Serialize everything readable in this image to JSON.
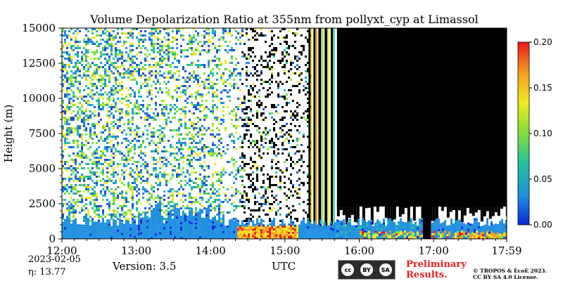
{
  "chart_data": {
    "type": "heatmap",
    "title": "Volume Depolarization Ratio at 355nm from pollyxt_cyp at Limassol",
    "xlabel": "UTC",
    "ylabel": "Height (m)",
    "x_ticks": [
      "12:00",
      "13:00",
      "14:00",
      "15:00",
      "16:00",
      "17:00",
      "17:59"
    ],
    "x_range": [
      "12:00",
      "17:59"
    ],
    "y_ticks": [
      0,
      2500,
      5000,
      7500,
      10000,
      12500,
      15000
    ],
    "ylim": [
      0,
      15000
    ],
    "colorbar": {
      "ticks": [
        "0.00",
        "0.05",
        "0.10",
        "0.15",
        "0.20"
      ],
      "range": [
        0,
        0.2
      ],
      "colors": [
        "#0a2bd6",
        "#1f8fe0",
        "#20c0a0",
        "#7ee03a",
        "#f2e820",
        "#f5a020",
        "#e81818"
      ]
    },
    "no_signal_color": "#000000",
    "noise_colors": [
      "#1f8fe0",
      "#20c0a0",
      "#7ee03a",
      "#f2e820",
      "#ffffff",
      "#2050d8"
    ],
    "regions": [
      {
        "label": "noisy_signal",
        "x_start": "12:00",
        "x_end": "15:20",
        "height_max": 15000
      },
      {
        "label": "no_signal",
        "x_start": "15:42",
        "x_end": "17:59",
        "height_min": 2800
      },
      {
        "label": "low_depol_layer",
        "x_start": "12:00",
        "x_end": "14:20",
        "height_max": 1200,
        "value": 0.02
      },
      {
        "label": "high_depol_layer",
        "x_start": "14:20",
        "x_end": "15:10",
        "height_max": 1000,
        "value": 0.18
      }
    ]
  },
  "footer": {
    "date": "2023-02-05",
    "eta": "η:  13.77",
    "version": "Version: 3.5",
    "prelim_line1": "Preliminary",
    "prelim_line2": "Results.",
    "copyright_line1": "© TROPOS & EcoE 2023.",
    "copyright_line2": "CC BY SA 4.0 License.",
    "cc_label": "cc",
    "by_label": "BY",
    "sa_label": "SA"
  }
}
